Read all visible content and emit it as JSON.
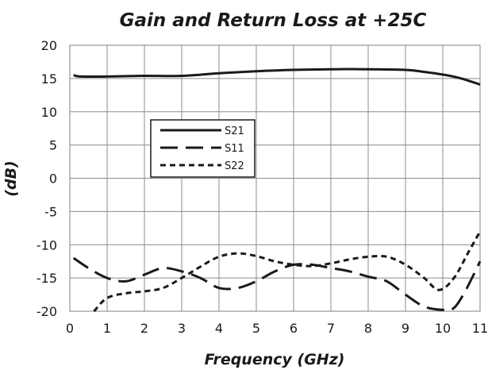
{
  "chart_data": {
    "type": "line",
    "title": "Gain and Return Loss at +25C",
    "xlabel": "Frequency (GHz)",
    "ylabel": "(dB)",
    "xlim": [
      0,
      11
    ],
    "ylim": [
      -20,
      20
    ],
    "x_ticks": [
      "0",
      "1",
      "2",
      "3",
      "4",
      "5",
      "6",
      "7",
      "8",
      "9",
      "10",
      "11"
    ],
    "y_ticks": [
      "20",
      "15",
      "10",
      "5",
      "0",
      "-5",
      "-10",
      "-15",
      "-20"
    ],
    "grid": true,
    "legend_position": "center-left",
    "series": [
      {
        "name": "S21",
        "style": "solid",
        "color": "#1a1a1a",
        "points": [
          [
            0.1,
            15.5
          ],
          [
            0.3,
            15.3
          ],
          [
            1,
            15.3
          ],
          [
            2,
            15.4
          ],
          [
            3,
            15.4
          ],
          [
            4,
            15.8
          ],
          [
            5,
            16.1
          ],
          [
            6,
            16.3
          ],
          [
            7,
            16.4
          ],
          [
            8,
            16.4
          ],
          [
            9,
            16.3
          ],
          [
            9.5,
            16.0
          ],
          [
            10,
            15.6
          ],
          [
            10.5,
            15.0
          ],
          [
            11,
            14.1
          ]
        ]
      },
      {
        "name": "S11",
        "style": "long-dash",
        "color": "#1a1a1a",
        "points": [
          [
            0.1,
            -12.0
          ],
          [
            0.5,
            -13.5
          ],
          [
            1,
            -15.0
          ],
          [
            1.5,
            -15.5
          ],
          [
            2,
            -14.5
          ],
          [
            2.5,
            -13.5
          ],
          [
            3,
            -14.0
          ],
          [
            3.5,
            -15.0
          ],
          [
            4,
            -16.5
          ],
          [
            4.5,
            -16.5
          ],
          [
            5,
            -15.5
          ],
          [
            5.5,
            -14.0
          ],
          [
            6,
            -13.0
          ],
          [
            6.5,
            -13.0
          ],
          [
            7,
            -13.5
          ],
          [
            7.5,
            -14.0
          ],
          [
            8,
            -14.8
          ],
          [
            8.5,
            -15.5
          ],
          [
            9,
            -17.5
          ],
          [
            9.5,
            -19.3
          ],
          [
            10,
            -19.8
          ],
          [
            10.3,
            -19.5
          ],
          [
            10.6,
            -17.0
          ],
          [
            11,
            -12.5
          ]
        ]
      },
      {
        "name": "S22",
        "style": "short-dash",
        "color": "#1a1a1a",
        "points": [
          [
            0.65,
            -20.0
          ],
          [
            1,
            -18.0
          ],
          [
            1.5,
            -17.3
          ],
          [
            2,
            -17.0
          ],
          [
            2.5,
            -16.5
          ],
          [
            3,
            -15.0
          ],
          [
            3.5,
            -13.3
          ],
          [
            4,
            -11.8
          ],
          [
            4.5,
            -11.3
          ],
          [
            5,
            -11.7
          ],
          [
            5.5,
            -12.5
          ],
          [
            6,
            -13.0
          ],
          [
            6.5,
            -13.2
          ],
          [
            7,
            -12.8
          ],
          [
            7.5,
            -12.2
          ],
          [
            8,
            -11.8
          ],
          [
            8.5,
            -11.8
          ],
          [
            9,
            -13.0
          ],
          [
            9.5,
            -15.0
          ],
          [
            9.9,
            -16.8
          ],
          [
            10.3,
            -15.0
          ],
          [
            10.7,
            -11.0
          ],
          [
            11,
            -8.0
          ]
        ]
      }
    ]
  }
}
